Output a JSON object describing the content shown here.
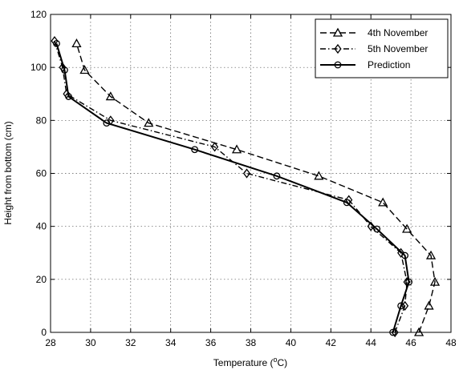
{
  "chart_data": {
    "type": "line",
    "xlabel_main": "Temperature (",
    "xlabel_sup": "o",
    "xlabel_end": "C)",
    "ylabel": "Height from bottom (cm)",
    "xlim": [
      28,
      48
    ],
    "ylim": [
      0,
      120
    ],
    "xticks": [
      "28",
      "30",
      "32",
      "34",
      "36",
      "38",
      "40",
      "42",
      "44",
      "46",
      "48"
    ],
    "yticks": [
      "0",
      "20",
      "40",
      "60",
      "80",
      "100",
      "120"
    ],
    "grid": true,
    "legend_position": "top-right",
    "series": [
      {
        "name": "4th November",
        "marker": "triangle",
        "dash": "dashed",
        "points": [
          [
            46.4,
            0
          ],
          [
            46.9,
            10
          ],
          [
            47.2,
            19
          ],
          [
            47.0,
            29
          ],
          [
            45.8,
            39
          ],
          [
            44.6,
            49
          ],
          [
            41.4,
            59
          ],
          [
            37.3,
            69
          ],
          [
            32.9,
            79
          ],
          [
            31.0,
            89
          ],
          [
            29.7,
            99
          ],
          [
            29.3,
            109
          ]
        ]
      },
      {
        "name": "5th November",
        "marker": "diamond",
        "dash": "dashdot",
        "points": [
          [
            45.2,
            0
          ],
          [
            45.7,
            10
          ],
          [
            45.8,
            19
          ],
          [
            45.5,
            30
          ],
          [
            44.0,
            40
          ],
          [
            42.9,
            50
          ],
          [
            37.8,
            60
          ],
          [
            36.2,
            70
          ],
          [
            31.0,
            80
          ],
          [
            28.8,
            90
          ],
          [
            28.6,
            100
          ],
          [
            28.2,
            110
          ]
        ]
      },
      {
        "name": "Prediction",
        "marker": "circle",
        "dash": "solid",
        "points": [
          [
            45.1,
            0
          ],
          [
            45.5,
            10
          ],
          [
            45.9,
            19
          ],
          [
            45.7,
            29
          ],
          [
            44.3,
            39
          ],
          [
            42.8,
            49
          ],
          [
            39.3,
            59
          ],
          [
            35.2,
            69
          ],
          [
            30.8,
            79
          ],
          [
            28.9,
            89
          ],
          [
            28.7,
            99
          ],
          [
            28.3,
            109
          ]
        ]
      }
    ]
  }
}
